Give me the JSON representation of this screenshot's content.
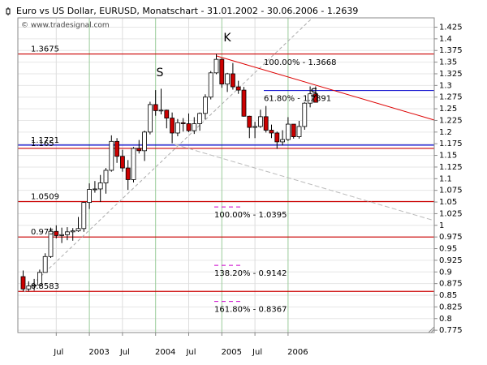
{
  "chart_data": {
    "type": "candlestick",
    "title": "Euro vs US Dollar, EURUSD, Monatschart - 31.01.2002 - 30.06.2006 - 1.2639",
    "subtitle": "© www.tradesignal.com",
    "categories": [
      null,
      null,
      null,
      null,
      null,
      null,
      "Jul",
      null,
      null,
      null,
      null,
      null,
      "2003",
      null,
      null,
      null,
      null,
      null,
      "Jul",
      null,
      null,
      null,
      null,
      null,
      "2004",
      null,
      null,
      null,
      null,
      null,
      "Jul",
      null,
      null,
      null,
      null,
      null,
      "2005",
      null,
      null,
      null,
      null,
      null,
      "Jul",
      null,
      null,
      null,
      null,
      null,
      "2006",
      null,
      null,
      null,
      null,
      null
    ],
    "open": [
      0.89,
      0.8635,
      0.87,
      0.872,
      0.899,
      0.933,
      0.987,
      0.978,
      0.98,
      0.986,
      0.988,
      0.993,
      1.049,
      1.077,
      1.078,
      1.091,
      1.118,
      1.18,
      1.148,
      1.123,
      1.098,
      1.165,
      1.16,
      1.2,
      1.259,
      1.246,
      1.247,
      1.23,
      1.198,
      1.22,
      1.218,
      1.203,
      1.218,
      1.24,
      1.275,
      1.327,
      1.356,
      1.303,
      1.325,
      1.297,
      1.29,
      1.234,
      1.21,
      1.212,
      1.233,
      1.204,
      1.198,
      1.179,
      1.184,
      1.217,
      1.19,
      1.212,
      1.262,
      1.282
    ],
    "high": [
      0.903,
      0.88,
      0.885,
      0.905,
      0.94,
      0.995,
      1.0,
      0.995,
      0.996,
      0.994,
      1.018,
      1.05,
      1.09,
      1.095,
      1.108,
      1.123,
      1.193,
      1.187,
      1.162,
      1.14,
      1.168,
      1.183,
      1.203,
      1.265,
      1.29,
      1.293,
      1.248,
      1.242,
      1.228,
      1.23,
      1.24,
      1.232,
      1.242,
      1.281,
      1.331,
      1.3675,
      1.358,
      1.327,
      1.348,
      1.31,
      1.297,
      1.235,
      1.222,
      1.248,
      1.256,
      1.216,
      1.201,
      1.204,
      1.232,
      1.217,
      1.224,
      1.264,
      1.298,
      1.298
    ],
    "low": [
      0.859,
      0.8583,
      0.86,
      0.87,
      0.899,
      0.93,
      0.972,
      0.962,
      0.968,
      0.967,
      0.986,
      0.986,
      1.035,
      1.07,
      1.05,
      1.068,
      1.115,
      1.134,
      1.115,
      1.076,
      1.092,
      1.154,
      1.138,
      1.195,
      1.235,
      1.238,
      1.208,
      1.176,
      1.191,
      1.201,
      1.2,
      1.196,
      1.203,
      1.227,
      1.27,
      1.324,
      1.295,
      1.286,
      1.291,
      1.282,
      1.233,
      1.187,
      1.187,
      1.209,
      1.199,
      1.187,
      1.164,
      1.171,
      1.181,
      1.186,
      1.186,
      1.205,
      1.253,
      1.265
    ],
    "close": [
      0.8635,
      0.87,
      0.872,
      0.899,
      0.933,
      0.987,
      0.978,
      0.98,
      0.986,
      0.988,
      0.993,
      1.049,
      1.077,
      1.078,
      1.091,
      1.118,
      1.18,
      1.148,
      1.123,
      1.098,
      1.165,
      1.16,
      1.2,
      1.259,
      1.246,
      1.247,
      1.23,
      1.198,
      1.22,
      1.218,
      1.203,
      1.218,
      1.24,
      1.275,
      1.327,
      1.356,
      1.303,
      1.325,
      1.297,
      1.29,
      1.234,
      1.21,
      1.212,
      1.233,
      1.204,
      1.198,
      1.179,
      1.184,
      1.217,
      1.19,
      1.212,
      1.262,
      1.282,
      1.2639
    ],
    "up_color": "#ffffff",
    "down_color": "#cc0000",
    "ylim": [
      0.77,
      1.445
    ],
    "yticks": [
      1.425,
      1.4,
      1.375,
      1.35,
      1.325,
      1.3,
      1.275,
      1.25,
      1.225,
      1.2,
      1.175,
      1.15,
      1.125,
      1.1,
      1.075,
      1.05,
      1.025,
      1,
      0.975,
      0.95,
      0.925,
      0.9,
      0.875,
      0.85,
      0.825,
      0.8,
      0.775
    ],
    "grid": true,
    "levels": [
      {
        "value": 1.3675,
        "color": "#cc0000"
      },
      {
        "value": 1.1721,
        "color": "#0000cc"
      },
      {
        "value": 1.165,
        "color": "#cc0000"
      },
      {
        "value": 1.0509,
        "color": "#cc0000"
      },
      {
        "value": 0.975,
        "color": "#cc0000"
      },
      {
        "value": 0.8583,
        "color": "#cc0000"
      }
    ],
    "fib_levels": [
      {
        "label": "100.00% - 1.3668",
        "value": 1.3668,
        "color": "#0000cc"
      },
      {
        "label": "61.80% - 1.2891",
        "value": 1.2891,
        "color": "#0000cc"
      },
      {
        "label": "100.00% - 1.0395",
        "value": 1.0395,
        "color": "#cc00cc"
      },
      {
        "label": "138.20% - 0.9142",
        "value": 0.9142,
        "color": "#cc00cc"
      },
      {
        "label": "161.80% - 0.8367",
        "value": 0.8367,
        "color": "#cc00cc"
      }
    ],
    "annotations": [
      "S",
      "K",
      "S"
    ]
  }
}
